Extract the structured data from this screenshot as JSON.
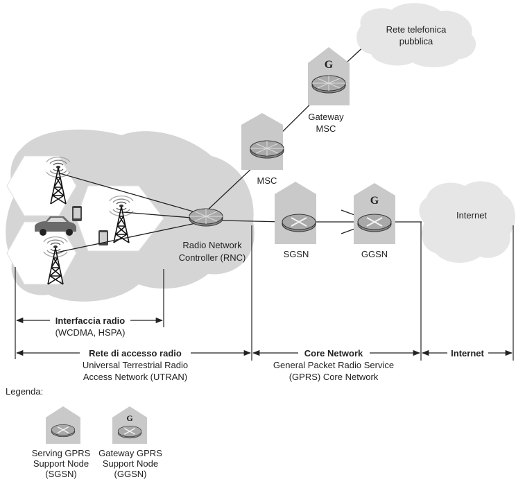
{
  "labels": {
    "cloud_phone_1": "Rete telefonica",
    "cloud_phone_2": "pubblica",
    "gateway_msc_1": "Gateway",
    "gateway_msc_2": "MSC",
    "msc": "MSC",
    "rnc_1": "Radio Network",
    "rnc_2": "Controller (RNC)",
    "sgsn": "SGSN",
    "ggsn": "GGSN",
    "internet_cloud": "Internet",
    "gateway_letter": "G"
  },
  "spans": {
    "radio_interface": {
      "title": "Interfaccia radio",
      "sub": "(WCDMA, HSPA)"
    },
    "radio_access": {
      "title": "Rete di accesso radio",
      "sub1": "Universal Terrestrial Radio",
      "sub2": "Access Network (UTRAN)"
    },
    "core": {
      "title": "Core Network",
      "sub1": "General Packet Radio Service",
      "sub2": "(GPRS) Core Network"
    },
    "internet": {
      "title": "Internet"
    }
  },
  "legend": {
    "title": "Legenda:",
    "sgsn": {
      "l1": "Serving GPRS",
      "l2": "Support Node",
      "l3": "(SGSN)"
    },
    "ggsn": {
      "l1": "Gateway GPRS",
      "l2": "Support Node",
      "l3": "(GGSN)"
    }
  },
  "colors": {
    "house": "#c9c9c9",
    "cloud": "#e6e6e6",
    "radio_cloud": "#d5d5d5",
    "hex": "#ffffff",
    "line": "#222222"
  }
}
